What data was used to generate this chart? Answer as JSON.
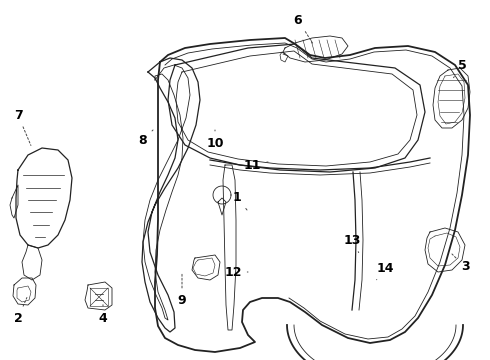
{
  "bg_color": "#ffffff",
  "line_color": "#222222",
  "label_color": "#000000",
  "figsize": [
    4.9,
    3.6
  ],
  "dpi": 100,
  "callouts": [
    [
      "1",
      237,
      197,
      247,
      210,
      true
    ],
    [
      "2",
      18,
      318,
      28,
      295,
      true
    ],
    [
      "3",
      465,
      267,
      450,
      252,
      true
    ],
    [
      "4",
      103,
      318,
      103,
      302,
      true
    ],
    [
      "5",
      462,
      65,
      452,
      80,
      true
    ],
    [
      "6",
      298,
      20,
      315,
      47,
      true
    ],
    [
      "7",
      18,
      115,
      32,
      148,
      true
    ],
    [
      "8",
      143,
      140,
      155,
      128,
      true
    ],
    [
      "9",
      182,
      300,
      182,
      270,
      true
    ],
    [
      "10",
      215,
      143,
      215,
      130,
      true
    ],
    [
      "11",
      252,
      165,
      268,
      162,
      true
    ],
    [
      "12",
      233,
      272,
      248,
      272,
      true
    ],
    [
      "13",
      352,
      240,
      360,
      255,
      true
    ],
    [
      "14",
      385,
      268,
      375,
      282,
      true
    ]
  ]
}
